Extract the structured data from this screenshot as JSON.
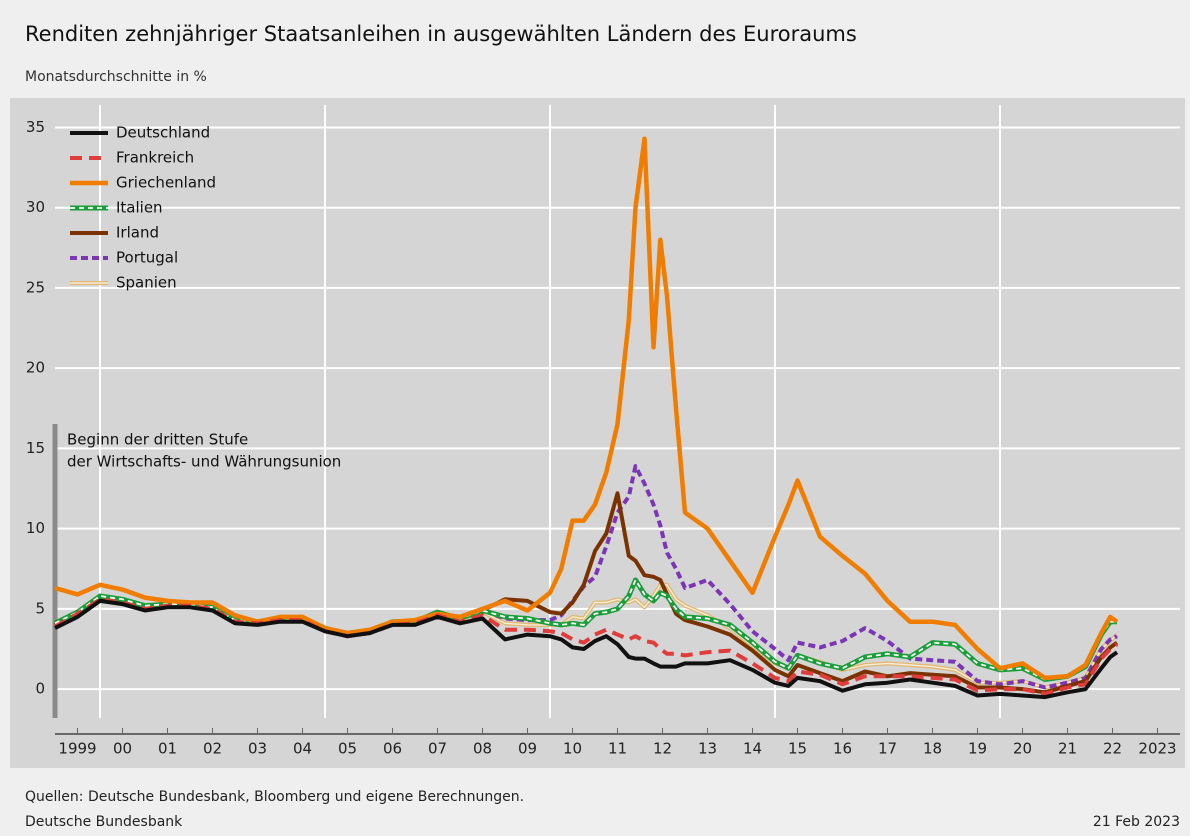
{
  "chart_data": {
    "type": "line",
    "title": "Renditen zehnjähriger Staatsanleihen in ausgewählten Ländern des Euroraums",
    "subtitle": "Monatsdurchschnitte in %",
    "annotation": [
      "Beginn der dritten Stufe",
      "der Wirtschafts- und Währungsunion"
    ],
    "source": "Quellen: Deutsche Bundesbank, Bloomberg und eigene Berechnungen.",
    "publisher": "Deutsche Bundesbank",
    "date": "21 Feb 2023",
    "legend": "top-left",
    "grid": true,
    "xgrid": [
      2000,
      2005,
      2010,
      2015,
      2020
    ],
    "xlim": [
      1999,
      2024
    ],
    "ylim": [
      -1.8,
      36.4
    ],
    "yticks": [
      0,
      5,
      10,
      15,
      20,
      25,
      30,
      35
    ],
    "xticks": [
      {
        "value": 1999.5,
        "label": "1999"
      },
      {
        "value": 2000.5,
        "label": "00"
      },
      {
        "value": 2001.5,
        "label": "01"
      },
      {
        "value": 2002.5,
        "label": "02"
      },
      {
        "value": 2003.5,
        "label": "03"
      },
      {
        "value": 2004.5,
        "label": "04"
      },
      {
        "value": 2005.5,
        "label": "05"
      },
      {
        "value": 2006.5,
        "label": "06"
      },
      {
        "value": 2007.5,
        "label": "07"
      },
      {
        "value": 2008.5,
        "label": "08"
      },
      {
        "value": 2009.5,
        "label": "09"
      },
      {
        "value": 2010.5,
        "label": "10"
      },
      {
        "value": 2011.5,
        "label": "11"
      },
      {
        "value": 2012.5,
        "label": "12"
      },
      {
        "value": 2013.5,
        "label": "13"
      },
      {
        "value": 2014.5,
        "label": "14"
      },
      {
        "value": 2015.5,
        "label": "15"
      },
      {
        "value": 2016.5,
        "label": "16"
      },
      {
        "value": 2017.5,
        "label": "17"
      },
      {
        "value": 2018.5,
        "label": "18"
      },
      {
        "value": 2019.5,
        "label": "19"
      },
      {
        "value": 2020.5,
        "label": "20"
      },
      {
        "value": 2021.5,
        "label": "21"
      },
      {
        "value": 2022.5,
        "label": "22"
      },
      {
        "value": 2023.5,
        "label": "2023"
      }
    ],
    "x": [
      1999,
      1999.5,
      2000,
      2000.5,
      2001,
      2001.5,
      2002,
      2002.5,
      2003,
      2003.5,
      2004,
      2004.5,
      2005,
      2005.5,
      2006,
      2006.5,
      2007,
      2007.5,
      2008,
      2008.5,
      2009,
      2009.5,
      2010,
      2010.25,
      2010.5,
      2010.75,
      2011,
      2011.25,
      2011.5,
      2011.75,
      2011.9,
      2012.1,
      2012.3,
      2012.45,
      2012.6,
      2012.8,
      2013,
      2013.5,
      2014,
      2014.5,
      2015,
      2015.3,
      2015.5,
      2016,
      2016.5,
      2017,
      2017.5,
      2018,
      2018.5,
      2019,
      2019.5,
      2020,
      2020.5,
      2021,
      2021.5,
      2021.9,
      2022.25,
      2022.45,
      2022.6
    ],
    "series": [
      {
        "name": "Deutschland",
        "color": "#111111",
        "width": 4,
        "values": [
          3.8,
          4.5,
          5.5,
          5.3,
          4.9,
          5.1,
          5.1,
          4.9,
          4.1,
          4.0,
          4.2,
          4.2,
          3.6,
          3.3,
          3.5,
          4.0,
          4.0,
          4.5,
          4.1,
          4.4,
          3.1,
          3.4,
          3.3,
          3.1,
          2.6,
          2.5,
          3.0,
          3.3,
          2.8,
          2.0,
          1.9,
          1.9,
          1.6,
          1.4,
          1.4,
          1.4,
          1.6,
          1.6,
          1.8,
          1.2,
          0.4,
          0.2,
          0.7,
          0.5,
          -0.1,
          0.3,
          0.4,
          0.6,
          0.4,
          0.2,
          -0.4,
          -0.3,
          -0.4,
          -0.5,
          -0.2,
          0.0,
          1.3,
          2.0,
          2.3
        ]
      },
      {
        "name": "Frankreich",
        "color": "#e03c3c",
        "width": 4,
        "dash": "12,7",
        "values": [
          3.9,
          4.7,
          5.6,
          5.4,
          5.0,
          5.2,
          5.2,
          5.0,
          4.2,
          4.1,
          4.3,
          4.3,
          3.6,
          3.3,
          3.5,
          4.0,
          4.1,
          4.6,
          4.2,
          4.6,
          3.7,
          3.7,
          3.6,
          3.5,
          3.1,
          2.9,
          3.4,
          3.7,
          3.4,
          3.1,
          3.3,
          3.0,
          2.9,
          2.5,
          2.2,
          2.2,
          2.1,
          2.3,
          2.4,
          1.6,
          0.7,
          0.5,
          1.1,
          0.9,
          0.3,
          0.8,
          0.8,
          0.8,
          0.7,
          0.6,
          -0.1,
          0.0,
          0.0,
          -0.3,
          0.1,
          0.3,
          1.9,
          2.5,
          2.8
        ]
      },
      {
        "name": "Griechenland",
        "color": "#f07d00",
        "width": 4.5,
        "values": [
          6.3,
          5.9,
          6.5,
          6.2,
          5.7,
          5.5,
          5.4,
          5.4,
          4.6,
          4.2,
          4.5,
          4.5,
          3.8,
          3.5,
          3.7,
          4.2,
          4.3,
          4.7,
          4.5,
          5.0,
          5.5,
          4.9,
          6.0,
          7.5,
          10.5,
          10.5,
          11.5,
          13.5,
          16.5,
          23,
          30,
          34.3,
          21.3,
          28,
          24.5,
          17.5,
          11,
          10,
          8.0,
          6.0,
          9.5,
          11.5,
          13.0,
          9.5,
          8.3,
          7.2,
          5.5,
          4.2,
          4.2,
          4.0,
          2.5,
          1.3,
          1.6,
          0.7,
          0.8,
          1.5,
          3.5,
          4.5,
          4.2
        ]
      },
      {
        "name": "Italien",
        "color": "#1a9e3a",
        "width": 5,
        "inner_color": "#ffffff",
        "values": [
          4.1,
          4.8,
          5.8,
          5.6,
          5.2,
          5.3,
          5.3,
          5.1,
          4.3,
          4.2,
          4.4,
          4.4,
          3.8,
          3.4,
          3.6,
          4.2,
          4.2,
          4.8,
          4.4,
          4.9,
          4.5,
          4.4,
          4.1,
          4.0,
          4.1,
          4.0,
          4.7,
          4.8,
          5.0,
          5.8,
          6.8,
          5.9,
          5.5,
          6.0,
          5.8,
          5.0,
          4.5,
          4.4,
          4.0,
          2.9,
          1.7,
          1.3,
          2.1,
          1.6,
          1.3,
          2.0,
          2.2,
          2.0,
          2.9,
          2.8,
          1.6,
          1.2,
          1.3,
          0.6,
          0.8,
          1.4,
          3.4,
          4.2,
          4.2
        ]
      },
      {
        "name": "Irland",
        "color": "#7a3300",
        "width": 4,
        "values": [
          4.0,
          4.8,
          5.7,
          5.5,
          5.1,
          5.2,
          5.2,
          5.0,
          4.2,
          4.1,
          4.3,
          4.3,
          3.7,
          3.3,
          3.5,
          4.1,
          4.1,
          4.7,
          4.4,
          4.9,
          5.6,
          5.5,
          4.8,
          4.7,
          5.4,
          6.5,
          8.6,
          9.7,
          12.2,
          8.3,
          8.0,
          7.1,
          7.0,
          6.8,
          5.9,
          4.7,
          4.3,
          3.9,
          3.4,
          2.4,
          1.2,
          0.8,
          1.5,
          1.0,
          0.5,
          1.1,
          0.8,
          1.0,
          0.9,
          0.8,
          0.1,
          0.1,
          0.0,
          -0.2,
          0.2,
          0.5,
          2.0,
          2.6,
          2.9
        ]
      },
      {
        "name": "Portugal",
        "color": "#7b35b5",
        "width": 4,
        "dash": "7,4",
        "values": [
          4.0,
          4.8,
          5.7,
          5.5,
          5.1,
          5.2,
          5.2,
          5.0,
          4.2,
          4.1,
          4.3,
          4.3,
          3.7,
          3.4,
          3.6,
          4.1,
          4.1,
          4.7,
          4.4,
          4.9,
          4.4,
          4.3,
          4.3,
          4.6,
          5.5,
          6.4,
          7.0,
          8.9,
          11.0,
          12.0,
          13.9,
          12.8,
          11.5,
          10.2,
          8.5,
          7.5,
          6.3,
          6.8,
          5.3,
          3.6,
          2.5,
          1.8,
          2.9,
          2.6,
          3.0,
          3.8,
          3.0,
          1.9,
          1.8,
          1.7,
          0.5,
          0.3,
          0.5,
          0.1,
          0.4,
          0.7,
          2.5,
          3.1,
          3.3
        ]
      },
      {
        "name": "Spanien",
        "color": "#e0b870",
        "width": 4,
        "inner_color": "#f6ecd8",
        "values": [
          4.0,
          4.7,
          5.7,
          5.5,
          5.1,
          5.2,
          5.2,
          5.0,
          4.2,
          4.1,
          4.3,
          4.3,
          3.7,
          3.3,
          3.5,
          4.1,
          4.1,
          4.7,
          4.3,
          4.8,
          4.1,
          4.0,
          4.0,
          4.0,
          4.5,
          4.4,
          5.4,
          5.4,
          5.6,
          5.4,
          5.6,
          5.1,
          5.8,
          6.5,
          6.5,
          5.6,
          5.2,
          4.6,
          3.8,
          2.7,
          1.6,
          1.3,
          2.1,
          1.7,
          1.2,
          1.5,
          1.6,
          1.5,
          1.4,
          1.2,
          0.4,
          0.4,
          0.5,
          0.1,
          0.4,
          0.7,
          2.5,
          3.0,
          3.4
        ]
      }
    ]
  }
}
